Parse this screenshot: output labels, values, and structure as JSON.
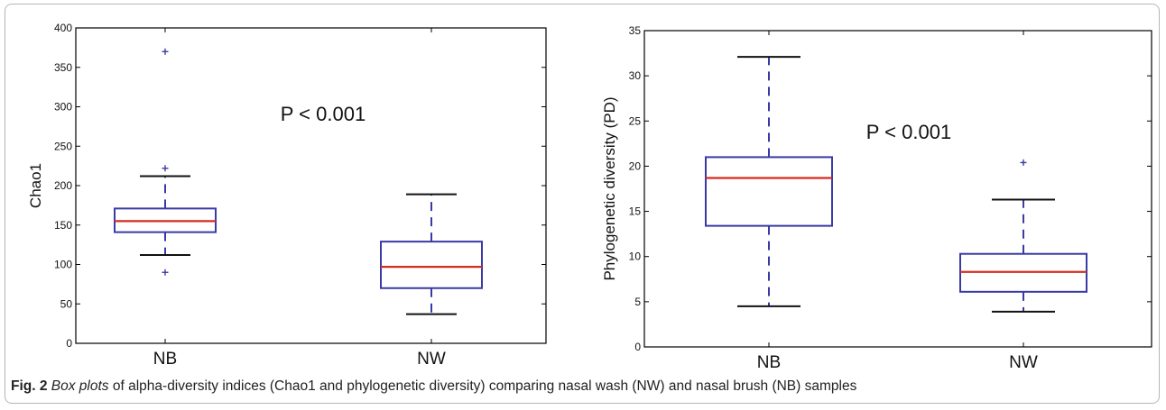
{
  "chart_data": [
    {
      "type": "box",
      "categories": [
        "NB",
        "NW"
      ],
      "ylabel": "Chao1",
      "ylim": [
        0,
        400
      ],
      "yticks": [
        0,
        50,
        100,
        150,
        200,
        250,
        300,
        350,
        400
      ],
      "annotation": "P < 0.001",
      "boxes": [
        {
          "name": "NB",
          "whisker_low": 112,
          "q1": 141,
          "median": 155,
          "q3": 171,
          "whisker_high": 212,
          "outliers": [
            90,
            222,
            370
          ]
        },
        {
          "name": "NW",
          "whisker_low": 37,
          "q1": 70,
          "median": 97,
          "q3": 129,
          "whisker_high": 189,
          "outliers": []
        }
      ],
      "colors": {
        "box": "#3a3aa6",
        "median": "#d62b1f",
        "whisker_cap": "#111111",
        "outlier": "#3a3aa6"
      }
    },
    {
      "type": "box",
      "categories": [
        "NB",
        "NW"
      ],
      "ylabel": "Phylogenetic diversity (PD)",
      "ylim": [
        0,
        35
      ],
      "yticks": [
        0,
        5,
        10,
        15,
        20,
        25,
        30,
        35
      ],
      "annotation": "P < 0.001",
      "boxes": [
        {
          "name": "NB",
          "whisker_low": 4.5,
          "q1": 13.4,
          "median": 18.7,
          "q3": 21.0,
          "whisker_high": 32.1,
          "outliers": []
        },
        {
          "name": "NW",
          "whisker_low": 3.9,
          "q1": 6.1,
          "median": 8.3,
          "q3": 10.3,
          "whisker_high": 16.3,
          "outliers": [
            20.4
          ]
        }
      ],
      "colors": {
        "box": "#3a3aa6",
        "median": "#d62b1f",
        "whisker_cap": "#111111",
        "outlier": "#3a3aa6"
      }
    }
  ],
  "caption": {
    "label": "Fig. 2",
    "italic": "Box plots",
    "text": " of alpha-diversity indices (Chao1 and phylogenetic diversity) comparing nasal wash (NW) and nasal brush (NB) samples"
  }
}
